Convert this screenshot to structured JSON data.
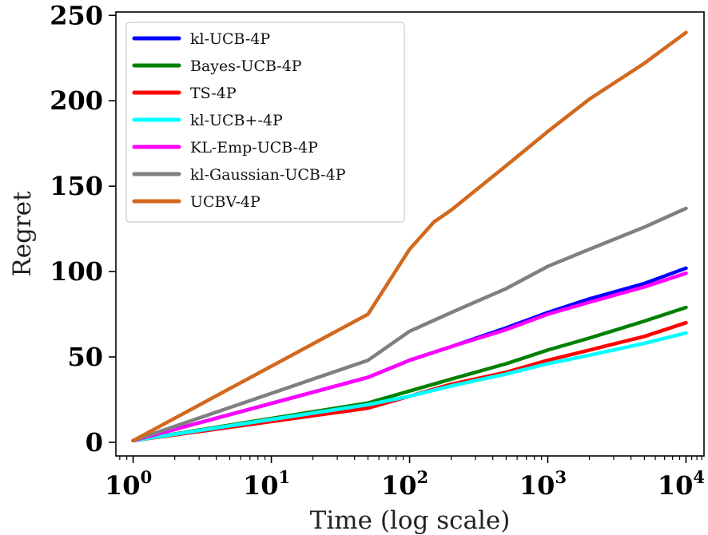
{
  "chart_data": {
    "type": "line",
    "xlabel": "Time (log scale)",
    "ylabel": "Regret",
    "xscale": "log",
    "xlim": [
      0.75,
      13500
    ],
    "ylim": [
      -8,
      252
    ],
    "x_ticks": [
      {
        "value": 1,
        "base": "10",
        "exp": "0"
      },
      {
        "value": 10,
        "base": "10",
        "exp": "1"
      },
      {
        "value": 100,
        "base": "10",
        "exp": "2"
      },
      {
        "value": 1000,
        "base": "10",
        "exp": "3"
      },
      {
        "value": 10000,
        "base": "10",
        "exp": "4"
      }
    ],
    "y_ticks": [
      "0",
      "50",
      "100",
      "150",
      "200",
      "250"
    ],
    "grid": false,
    "legend_position": "top-left",
    "series": [
      {
        "name": "kl-UCB-4P",
        "color": "#0000ff",
        "x": [
          1,
          50,
          100,
          200,
          500,
          1000,
          2000,
          5000,
          10000
        ],
        "y": [
          1,
          38,
          48,
          56,
          67,
          76,
          84,
          93,
          102
        ]
      },
      {
        "name": "Bayes-UCB-4P",
        "color": "#008000",
        "x": [
          1,
          50,
          100,
          200,
          500,
          1000,
          2000,
          5000,
          10000
        ],
        "y": [
          1,
          23,
          30,
          37,
          46,
          54,
          61,
          71,
          79
        ]
      },
      {
        "name": "TS-4P",
        "color": "#ff0000",
        "x": [
          1,
          50,
          100,
          200,
          500,
          1000,
          2000,
          5000,
          10000
        ],
        "y": [
          1,
          20,
          27,
          34,
          41,
          48,
          54,
          62,
          70
        ]
      },
      {
        "name": "kl-UCB+-4P",
        "color": "#00ffff",
        "x": [
          1,
          50,
          100,
          200,
          500,
          1000,
          2000,
          5000,
          10000
        ],
        "y": [
          1,
          22,
          27,
          33,
          40,
          46,
          51,
          58,
          64
        ]
      },
      {
        "name": "KL-Emp-UCB-4P",
        "color": "#ff00ff",
        "x": [
          1,
          50,
          100,
          200,
          500,
          1000,
          2000,
          5000,
          10000
        ],
        "y": [
          1,
          38,
          48,
          56,
          66,
          75,
          82,
          91,
          99
        ]
      },
      {
        "name": "kl-Gaussian-UCB-4P",
        "color": "#808080",
        "x": [
          1,
          50,
          100,
          200,
          500,
          1000,
          2000,
          5000,
          10000
        ],
        "y": [
          1,
          48,
          65,
          76,
          90,
          103,
          113,
          126,
          137
        ]
      },
      {
        "name": "UCBV-4P",
        "color": "#d2691e",
        "x": [
          1,
          50,
          100,
          150,
          200,
          500,
          1000,
          2000,
          5000,
          10000
        ],
        "y": [
          1,
          75,
          113,
          129,
          136,
          162,
          182,
          201,
          222,
          240
        ]
      }
    ]
  }
}
